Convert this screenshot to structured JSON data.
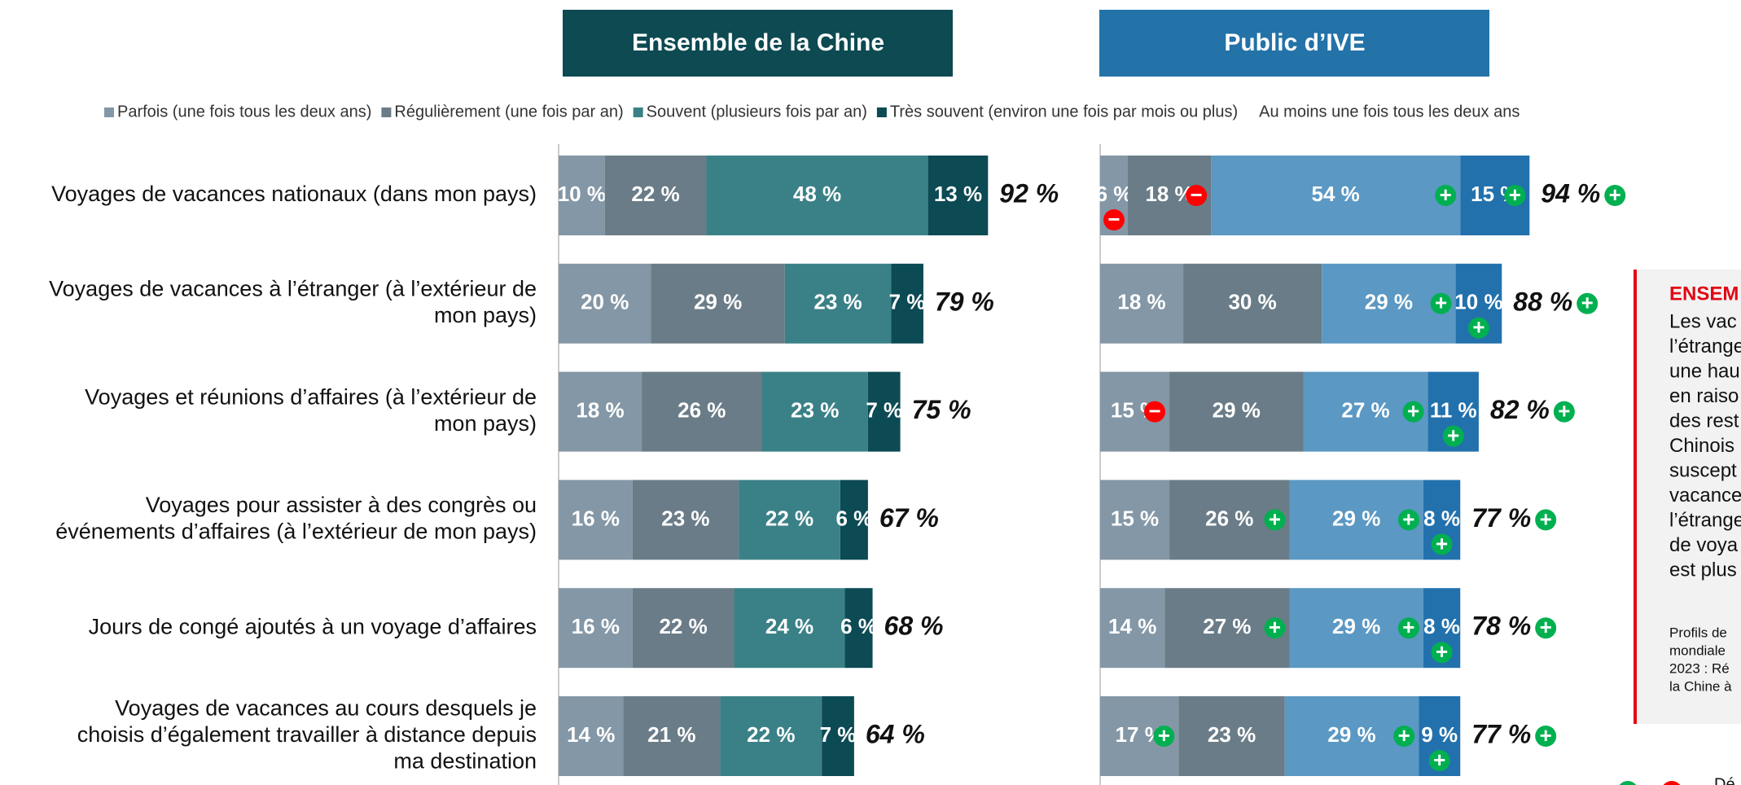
{
  "chart_data": {
    "type": "stacked-bar",
    "panels": [
      {
        "title": "Ensemble de la Chine",
        "header_color": "#0d4a52",
        "series": [
          {
            "name": "Parfois (une fois tous les deux ans)",
            "color": "#8497a6",
            "values": [
              10,
              20,
              18,
              16,
              16,
              14
            ],
            "value_labels": [
              "10 %",
              "20 %",
              "18 %",
              "16 %",
              "16 %",
              "14 %"
            ]
          },
          {
            "name": "Régulièrement (une fois par an)",
            "color": "#6a7c87",
            "values": [
              22,
              29,
              26,
              23,
              22,
              21
            ],
            "value_labels": [
              "22 %",
              "29 %",
              "26 %",
              "23 %",
              "22 %",
              "21 %"
            ]
          },
          {
            "name": "Souvent (plusieurs fois par an)",
            "color": "#3a8187",
            "values": [
              48,
              23,
              23,
              22,
              24,
              22
            ],
            "value_labels": [
              "48 %",
              "23 %",
              "23 %",
              "22 %",
              "24 %",
              "22 %"
            ]
          },
          {
            "name": "Très souvent (environ une fois par mois ou plus)",
            "color": "#0c4a54",
            "values": [
              13,
              7,
              7,
              6,
              6,
              7
            ],
            "value_labels": [
              "13 %",
              "7 %",
              "7 %",
              "6 %",
              "6 %",
              "7 %"
            ]
          }
        ],
        "totals": [
          92,
          79,
          75,
          67,
          68,
          64
        ],
        "total_labels": [
          "92 %",
          "79 %",
          "75 %",
          "67 %",
          "68 %",
          "64 %"
        ]
      },
      {
        "title": "Public d’IVE",
        "header_color": "#2372a8",
        "series": [
          {
            "color": "#8497a6",
            "values": [
              6,
              18,
              15,
              15,
              14,
              17
            ],
            "value_labels": [
              "6 %",
              "18 %",
              "15 %",
              "15 %",
              "14 %",
              "17 %"
            ],
            "markers": [
              "−",
              null,
              "−",
              null,
              null,
              "+"
            ]
          },
          {
            "color": "#6a7c87",
            "values": [
              18,
              30,
              29,
              26,
              27,
              23
            ],
            "value_labels": [
              "18 %",
              "30 %",
              "29 %",
              "26 %",
              "27 %",
              "23 %"
            ],
            "markers": [
              "−",
              null,
              null,
              "+",
              "+",
              null
            ]
          },
          {
            "color": "#5b98c3",
            "values": [
              54,
              29,
              27,
              29,
              29,
              29
            ],
            "value_labels": [
              "54 %",
              "29 %",
              "27 %",
              "29 %",
              "29 %",
              "29 %"
            ],
            "markers": [
              "+",
              "+",
              "+",
              "+",
              "+",
              "+"
            ]
          },
          {
            "color": "#2271ad",
            "values": [
              15,
              10,
              11,
              8,
              8,
              9
            ],
            "value_labels": [
              "15 %",
              "10 %",
              "11 %",
              "8 %",
              "8 %",
              "9 %"
            ],
            "markers": [
              "+",
              "+",
              "+",
              "+",
              "+",
              "+"
            ]
          }
        ],
        "totals": [
          94,
          88,
          82,
          77,
          78,
          77
        ],
        "total_labels": [
          "94 %",
          "88 %",
          "82 %",
          "77 %",
          "78 %",
          "77 %"
        ],
        "total_markers": [
          "+",
          "+",
          "+",
          "+",
          "+",
          "+"
        ]
      }
    ],
    "totals_name": "Au moins une fois tous les deux ans",
    "categories": [
      "Voyages de vacances nationaux (dans mon pays)",
      "Voyages de vacances à l’étranger (à l’extérieur de\nmon pays)",
      "Voyages et réunions d’affaires (à l’extérieur de\nmon pays)",
      "Voyages pour assister à des congrès ou\névénements d’affaires (à l’extérieur de mon pays)",
      "Jours de congé ajoutés à un voyage d’affaires",
      "Voyages de vacances au cours desquels je\nchoisis d’également travailler à distance depuis\nma destination"
    ],
    "side_note": {
      "heading": "ENSEM",
      "lines": [
        "Les vac",
        "l’étrange",
        "une hau",
        "en raiso",
        "des rest",
        "Chinois",
        "suscept",
        "vacance",
        "l’étrange",
        "de voya",
        "est plus"
      ],
      "source": [
        "Profils de",
        "mondiale",
        "2023 : Ré",
        "la Chine à"
      ]
    },
    "footer_legend": "Dé"
  }
}
